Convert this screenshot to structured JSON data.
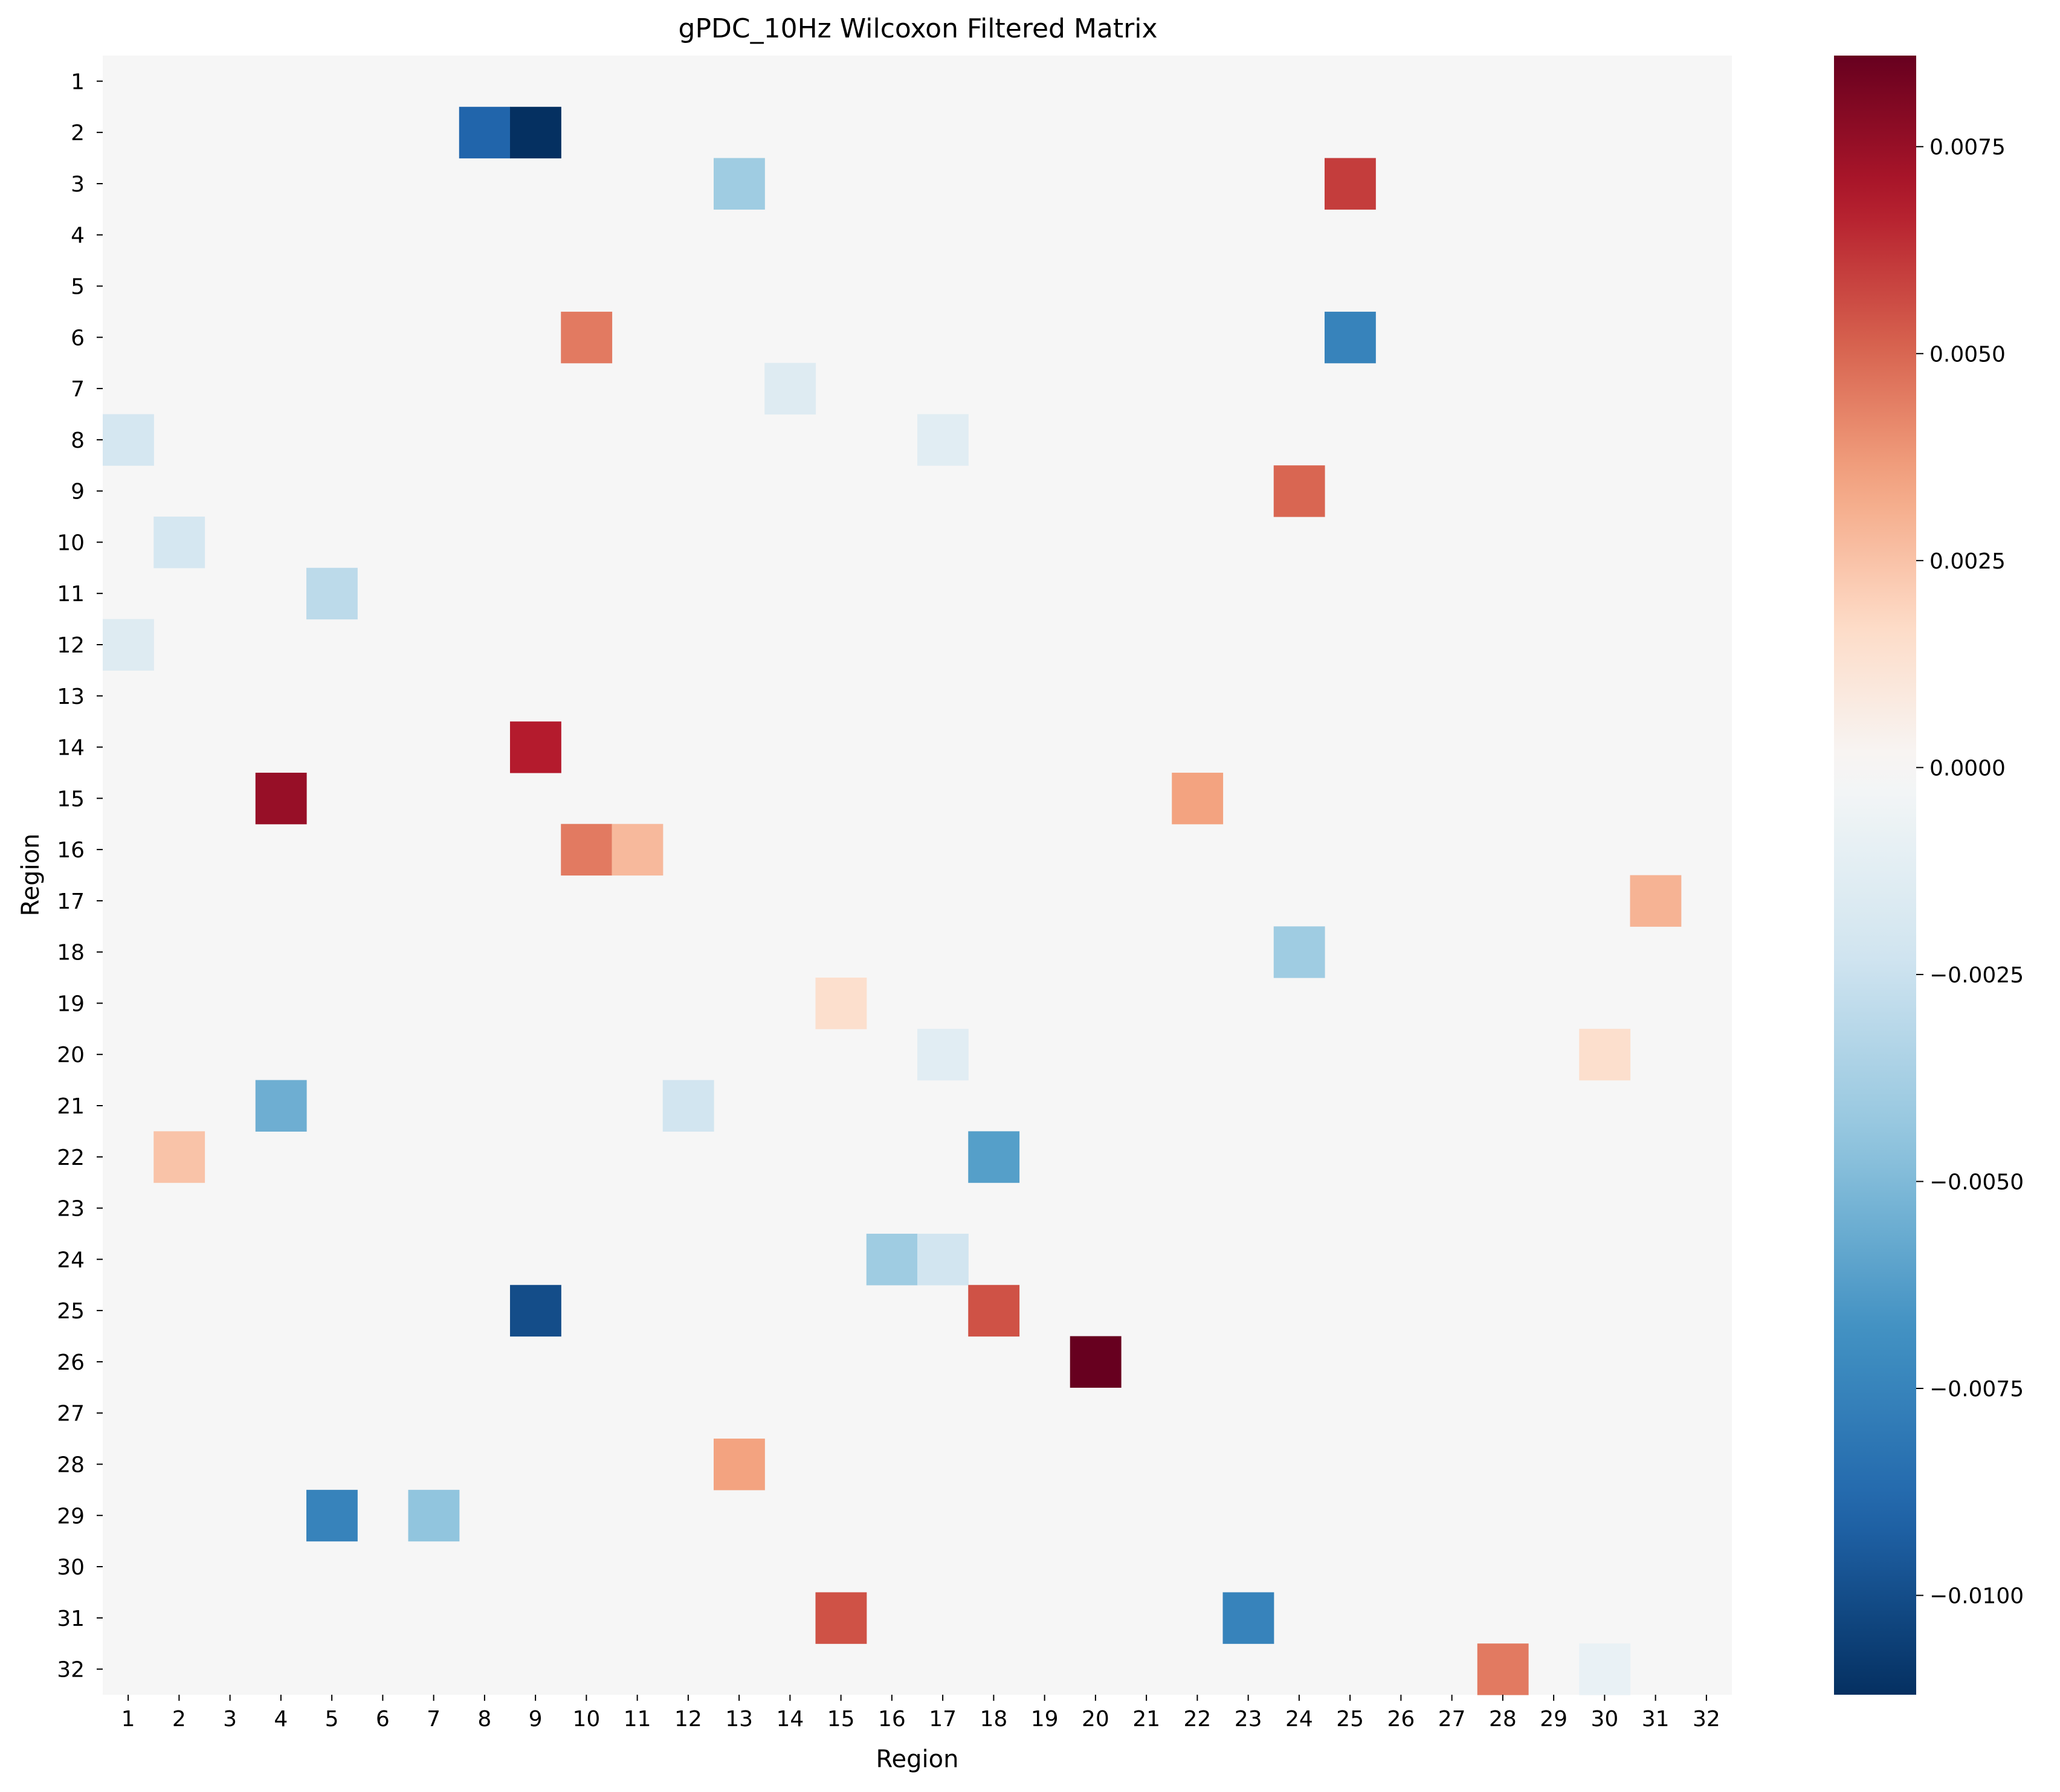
{
  "chart_data": {
    "type": "heatmap",
    "title": "gPDC_10Hz Wilcoxon Filtered Matrix",
    "xlabel": "Region",
    "ylabel": "Region",
    "x_ticks": [
      "1",
      "2",
      "3",
      "4",
      "5",
      "6",
      "7",
      "8",
      "9",
      "10",
      "11",
      "12",
      "13",
      "14",
      "15",
      "16",
      "17",
      "18",
      "19",
      "20",
      "21",
      "22",
      "23",
      "24",
      "25",
      "26",
      "27",
      "28",
      "29",
      "30",
      "31",
      "32"
    ],
    "y_ticks": [
      "1",
      "2",
      "3",
      "4",
      "5",
      "6",
      "7",
      "8",
      "9",
      "10",
      "11",
      "12",
      "13",
      "14",
      "15",
      "16",
      "17",
      "18",
      "19",
      "20",
      "21",
      "22",
      "23",
      "24",
      "25",
      "26",
      "27",
      "28",
      "29",
      "30",
      "31",
      "32"
    ],
    "background_value": 0,
    "colormap": "RdBu_r",
    "vmin": -0.0112,
    "vmax": 0.0086,
    "colorbar_ticks": [
      {
        "value": 0.0075,
        "label": "0.0075"
      },
      {
        "value": 0.005,
        "label": "0.0050"
      },
      {
        "value": 0.0025,
        "label": "0.0025"
      },
      {
        "value": 0,
        "label": "0.0000"
      },
      {
        "value": -0.0025,
        "label": "−0.0025"
      },
      {
        "value": -0.005,
        "label": "−0.0050"
      },
      {
        "value": -0.0075,
        "label": "−0.0075"
      },
      {
        "value": -0.01,
        "label": "−0.0100"
      }
    ],
    "cells": [
      {
        "row": 2,
        "col": 8,
        "value": -0.009
      },
      {
        "row": 2,
        "col": 9,
        "value": -0.0112
      },
      {
        "row": 3,
        "col": 13,
        "value": -0.004
      },
      {
        "row": 3,
        "col": 25,
        "value": 0.006
      },
      {
        "row": 6,
        "col": 10,
        "value": 0.0045
      },
      {
        "row": 6,
        "col": 25,
        "value": -0.0075
      },
      {
        "row": 7,
        "col": 14,
        "value": -0.0015
      },
      {
        "row": 8,
        "col": 1,
        "value": -0.002
      },
      {
        "row": 8,
        "col": 17,
        "value": -0.0013
      },
      {
        "row": 9,
        "col": 24,
        "value": 0.005
      },
      {
        "row": 10,
        "col": 2,
        "value": -0.002
      },
      {
        "row": 11,
        "col": 5,
        "value": -0.003
      },
      {
        "row": 12,
        "col": 1,
        "value": -0.0015
      },
      {
        "row": 14,
        "col": 9,
        "value": 0.0068
      },
      {
        "row": 15,
        "col": 4,
        "value": 0.0075
      },
      {
        "row": 15,
        "col": 22,
        "value": 0.0035
      },
      {
        "row": 16,
        "col": 10,
        "value": 0.0045
      },
      {
        "row": 16,
        "col": 11,
        "value": 0.0028
      },
      {
        "row": 17,
        "col": 31,
        "value": 0.003
      },
      {
        "row": 18,
        "col": 24,
        "value": -0.004
      },
      {
        "row": 19,
        "col": 15,
        "value": 0.0015
      },
      {
        "row": 20,
        "col": 17,
        "value": -0.0013
      },
      {
        "row": 20,
        "col": 30,
        "value": 0.0015
      },
      {
        "row": 21,
        "col": 4,
        "value": -0.0055
      },
      {
        "row": 21,
        "col": 12,
        "value": -0.0022
      },
      {
        "row": 22,
        "col": 2,
        "value": 0.0025
      },
      {
        "row": 22,
        "col": 18,
        "value": -0.0062
      },
      {
        "row": 24,
        "col": 16,
        "value": -0.004
      },
      {
        "row": 24,
        "col": 17,
        "value": -0.0022
      },
      {
        "row": 25,
        "col": 9,
        "value": -0.01
      },
      {
        "row": 25,
        "col": 18,
        "value": 0.0055
      },
      {
        "row": 26,
        "col": 20,
        "value": 0.0086
      },
      {
        "row": 28,
        "col": 13,
        "value": 0.0035
      },
      {
        "row": 29,
        "col": 5,
        "value": -0.0075
      },
      {
        "row": 29,
        "col": 7,
        "value": -0.0045
      },
      {
        "row": 31,
        "col": 15,
        "value": 0.0055
      },
      {
        "row": 31,
        "col": 23,
        "value": -0.0075
      },
      {
        "row": 32,
        "col": 28,
        "value": 0.0045
      },
      {
        "row": 32,
        "col": 30,
        "value": -0.0008
      }
    ]
  }
}
